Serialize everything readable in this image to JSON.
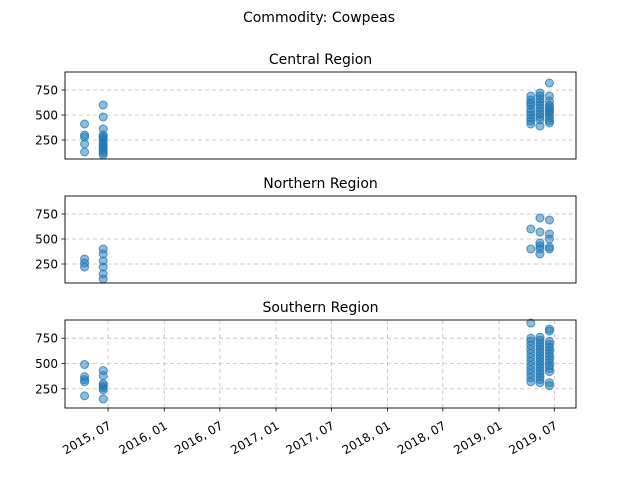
{
  "figure": {
    "suptitle": "Commodity: Cowpeas"
  },
  "chart_data": [
    {
      "type": "scatter",
      "title": "Central Region",
      "ylim": [
        60,
        930
      ],
      "yticks": [
        250,
        500,
        750
      ],
      "xrange": [
        "2015-02-10",
        "2019-09-10"
      ],
      "xticks": [],
      "grid": "y",
      "series": [
        {
          "x": "2015-04-15",
          "y": [
            410,
            300,
            280,
            210,
            130
          ]
        },
        {
          "x": "2015-06-15",
          "y": [
            600,
            480,
            360,
            300,
            280,
            270,
            250,
            220,
            200,
            180,
            160,
            140,
            120,
            100
          ]
        },
        {
          "x": "2019-04-15",
          "y": [
            690,
            650,
            620,
            600,
            560,
            530,
            500,
            470,
            440,
            410
          ]
        },
        {
          "x": "2019-05-15",
          "y": [
            720,
            690,
            660,
            630,
            600,
            570,
            540,
            510,
            480,
            450,
            390
          ]
        },
        {
          "x": "2019-06-15",
          "y": [
            820,
            690,
            640,
            600,
            580,
            560,
            540,
            520,
            500,
            470,
            440,
            420
          ]
        }
      ]
    },
    {
      "type": "scatter",
      "title": "Northern Region",
      "ylim": [
        60,
        930
      ],
      "yticks": [
        250,
        500,
        750
      ],
      "xrange": [
        "2015-02-10",
        "2019-09-10"
      ],
      "xticks": [],
      "grid": "y",
      "series": [
        {
          "x": "2015-04-15",
          "y": [
            300,
            260,
            220
          ]
        },
        {
          "x": "2015-06-15",
          "y": [
            400,
            350,
            280,
            220,
            150,
            100
          ]
        },
        {
          "x": "2019-04-15",
          "y": [
            600,
            400
          ]
        },
        {
          "x": "2019-05-15",
          "y": [
            710,
            570,
            460,
            430,
            400,
            350
          ]
        },
        {
          "x": "2019-06-15",
          "y": [
            690,
            550,
            500,
            420,
            400
          ]
        }
      ]
    },
    {
      "type": "scatter",
      "title": "Southern Region",
      "ylim": [
        60,
        930
      ],
      "yticks": [
        250,
        500,
        750
      ],
      "xrange": [
        "2015-02-10",
        "2019-09-10"
      ],
      "xticks": [
        "2015, 07",
        "2016, 01",
        "2016, 07",
        "2017, 01",
        "2017, 07",
        "2018, 01",
        "2018, 07",
        "2019, 01",
        "2019, 07"
      ],
      "xtick_dates": [
        "2015-07-01",
        "2016-01-01",
        "2016-07-01",
        "2017-01-01",
        "2017-07-01",
        "2018-01-01",
        "2018-07-01",
        "2019-01-01",
        "2019-07-01"
      ],
      "grid": "both",
      "series": [
        {
          "x": "2015-04-15",
          "y": [
            490,
            370,
            340,
            320,
            180
          ]
        },
        {
          "x": "2015-06-15",
          "y": [
            430,
            380,
            300,
            280,
            260,
            240,
            150
          ]
        },
        {
          "x": "2019-04-15",
          "y": [
            900,
            750,
            720,
            680,
            640,
            600,
            560,
            520,
            480,
            440,
            400,
            360,
            320
          ]
        },
        {
          "x": "2019-05-15",
          "y": [
            760,
            730,
            700,
            670,
            640,
            610,
            580,
            550,
            520,
            490,
            460,
            430,
            400,
            370,
            340,
            310
          ]
        },
        {
          "x": "2019-06-15",
          "y": [
            840,
            820,
            720,
            690,
            660,
            630,
            600,
            570,
            540,
            510,
            480,
            450,
            420,
            310,
            280
          ]
        }
      ]
    }
  ]
}
